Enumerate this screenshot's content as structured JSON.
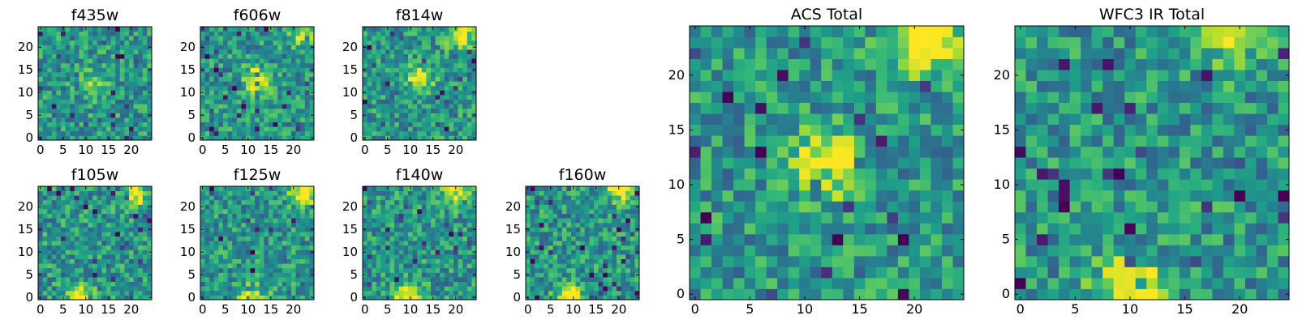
{
  "chart_data": [
    {
      "type": "heatmap",
      "id": "f435w",
      "title": "f435w",
      "xlim": [
        0,
        24
      ],
      "ylim": [
        0,
        24
      ],
      "xticks": [
        "0",
        "5",
        "10",
        "15",
        "20"
      ],
      "yticks": [
        "0",
        "5",
        "10",
        "15",
        "20"
      ],
      "colormap": "viridis",
      "bright_spots": [
        [
          12,
          12,
          0.35
        ]
      ],
      "seed": 3
    },
    {
      "type": "heatmap",
      "id": "f606w",
      "title": "f606w",
      "xlim": [
        0,
        24
      ],
      "ylim": [
        0,
        24
      ],
      "xticks": [
        "0",
        "5",
        "10",
        "15",
        "20"
      ],
      "yticks": [
        "0",
        "5",
        "10",
        "15",
        "20"
      ],
      "colormap": "viridis",
      "bright_spots": [
        [
          12,
          13,
          0.45
        ],
        [
          22,
          23,
          0.4
        ]
      ],
      "seed": 7
    },
    {
      "type": "heatmap",
      "id": "f814w",
      "title": "f814w",
      "xlim": [
        0,
        24
      ],
      "ylim": [
        0,
        24
      ],
      "xticks": [
        "0",
        "5",
        "10",
        "15",
        "20"
      ],
      "yticks": [
        "0",
        "5",
        "10",
        "15",
        "20"
      ],
      "colormap": "viridis",
      "bright_spots": [
        [
          12,
          13,
          0.5
        ],
        [
          21,
          23,
          0.55
        ]
      ],
      "seed": 11
    },
    {
      "type": "heatmap",
      "id": "f105w",
      "title": "f105w",
      "xlim": [
        0,
        24
      ],
      "ylim": [
        0,
        24
      ],
      "xticks": [
        "0",
        "5",
        "10",
        "15",
        "20"
      ],
      "yticks": [
        "0",
        "5",
        "10",
        "15",
        "20"
      ],
      "colormap": "viridis",
      "bright_spots": [
        [
          9,
          0,
          0.55
        ],
        [
          21,
          23,
          0.5
        ]
      ],
      "seed": 13
    },
    {
      "type": "heatmap",
      "id": "f125w",
      "title": "f125w",
      "xlim": [
        0,
        24
      ],
      "ylim": [
        0,
        24
      ],
      "xticks": [
        "0",
        "5",
        "10",
        "15",
        "20"
      ],
      "yticks": [
        "0",
        "5",
        "10",
        "15",
        "20"
      ],
      "colormap": "viridis",
      "bright_spots": [
        [
          11,
          0,
          0.55
        ],
        [
          22,
          23,
          0.6
        ]
      ],
      "seed": 17
    },
    {
      "type": "heatmap",
      "id": "f140w",
      "title": "f140w",
      "xlim": [
        0,
        24
      ],
      "ylim": [
        0,
        24
      ],
      "xticks": [
        "0",
        "5",
        "10",
        "15",
        "20"
      ],
      "yticks": [
        "0",
        "5",
        "10",
        "15",
        "20"
      ],
      "colormap": "viridis",
      "bright_spots": [
        [
          9,
          0,
          0.6
        ],
        [
          20,
          23,
          0.5
        ]
      ],
      "seed": 19
    },
    {
      "type": "heatmap",
      "id": "f160w",
      "title": "f160w",
      "xlim": [
        0,
        24
      ],
      "ylim": [
        0,
        24
      ],
      "xticks": [
        "0",
        "5",
        "10",
        "15",
        "20"
      ],
      "yticks": [
        "0",
        "5",
        "10",
        "15",
        "20"
      ],
      "colormap": "viridis",
      "bright_spots": [
        [
          9,
          0,
          0.6
        ],
        [
          20,
          24,
          0.5
        ]
      ],
      "seed": 23
    },
    {
      "type": "heatmap",
      "id": "acs_total",
      "title": "ACS Total",
      "xlim": [
        0,
        24
      ],
      "ylim": [
        0,
        24
      ],
      "xticks": [
        "0",
        "5",
        "10",
        "15",
        "20"
      ],
      "yticks": [
        "0",
        "5",
        "10",
        "15",
        "20"
      ],
      "colormap": "viridis",
      "bright_spots": [
        [
          12,
          12,
          0.6
        ],
        [
          21,
          23,
          0.65
        ]
      ],
      "seed": 29
    },
    {
      "type": "heatmap",
      "id": "wfc3_ir_total",
      "title": "WFC3 IR Total",
      "xlim": [
        0,
        24
      ],
      "ylim": [
        0,
        24
      ],
      "xticks": [
        "0",
        "5",
        "10",
        "15",
        "20"
      ],
      "yticks": [
        "0",
        "5",
        "10",
        "15",
        "20"
      ],
      "colormap": "viridis",
      "bright_spots": [
        [
          10,
          0,
          0.75
        ],
        [
          20,
          24,
          0.55
        ]
      ],
      "seed": 31
    }
  ]
}
